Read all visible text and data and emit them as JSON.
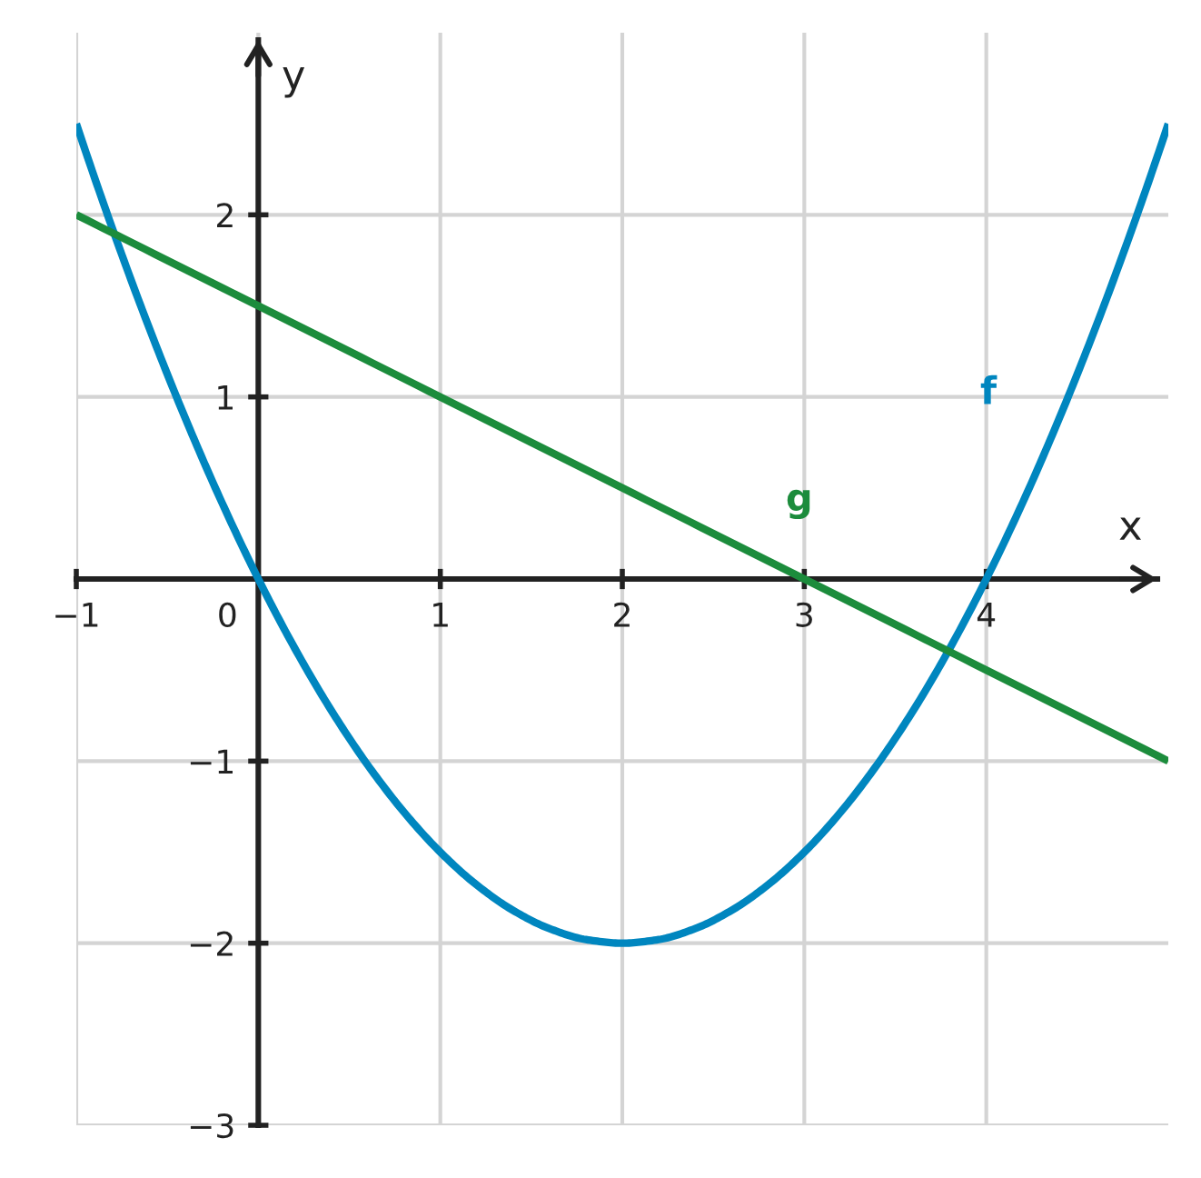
{
  "chart_data": {
    "type": "line",
    "xlabel": "x",
    "ylabel": "y",
    "xlim": [
      -1,
      5
    ],
    "ylim": [
      -3,
      3
    ],
    "xticks": [
      {
        "value": -1,
        "label": "−1"
      },
      0,
      1,
      2,
      3,
      4
    ],
    "yticks": [
      {
        "value": -3,
        "label": "−3"
      },
      {
        "value": -2,
        "label": "−2"
      },
      {
        "value": -1,
        "label": "−1"
      },
      1,
      2
    ],
    "grid": true,
    "line_style": "solid",
    "series": [
      {
        "name": "f",
        "color": "#0086bf",
        "x": [
          -1,
          -0.8,
          -0.6,
          -0.4,
          -0.2,
          0,
          0.2,
          0.4,
          0.6,
          0.8,
          1,
          1.2,
          1.4,
          1.6,
          1.8,
          2,
          2.2,
          2.4,
          2.6,
          2.8,
          3,
          3.2,
          3.4,
          3.6,
          3.8,
          4,
          4.2,
          4.4,
          4.6,
          4.8,
          5
        ],
        "values": [
          2.5,
          1.92,
          1.38,
          0.88,
          0.42,
          0,
          -0.38,
          -0.72,
          -1.02,
          -1.28,
          -1.5,
          -1.68,
          -1.82,
          -1.92,
          -1.98,
          -2,
          -1.98,
          -1.92,
          -1.82,
          -1.68,
          -1.5,
          -1.28,
          -1.02,
          -0.72,
          -0.38,
          0,
          0.42,
          0.88,
          1.38,
          1.92,
          2.5
        ]
      },
      {
        "name": "g",
        "color": "#1c8c3c",
        "x": [
          -1,
          0,
          1,
          2,
          3,
          4,
          5
        ],
        "values": [
          2,
          1.5,
          1,
          0.5,
          0,
          -0.5,
          -1
        ]
      }
    ]
  }
}
